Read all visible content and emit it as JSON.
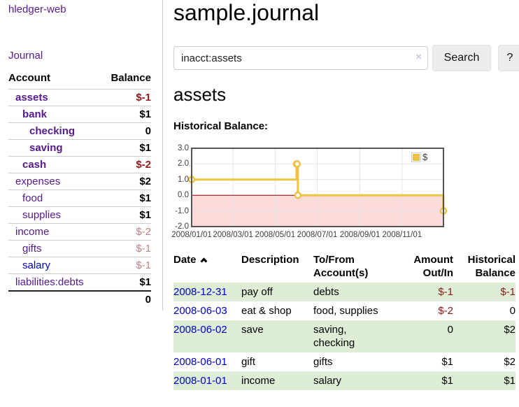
{
  "colors": {
    "purple": "#551a8b",
    "blue": "#0000cc",
    "negative": "#8b1a1a",
    "negative_dim": "#c08484",
    "row_green": "#ddedd6",
    "gold": "#edc240",
    "zero_line": "#8b0000",
    "neg_region": "#fbdada",
    "grid": "#e4e4e4",
    "chart_border": "#545454",
    "button_bg": "#ececec"
  },
  "sidebar": {
    "brand": "hledger-web",
    "journal_link": "Journal",
    "account_header": "Account",
    "balance_header": "Balance",
    "accounts": [
      {
        "label": "assets",
        "balance": "$-1",
        "depth": 0,
        "matched": true,
        "dim": false,
        "link_color": "purple"
      },
      {
        "label": "bank",
        "balance": "$1",
        "depth": 1,
        "matched": true,
        "dim": false,
        "link_color": "purple"
      },
      {
        "label": "checking",
        "balance": "0",
        "depth": 2,
        "matched": true,
        "dim": false,
        "link_color": "purple"
      },
      {
        "label": "saving",
        "balance": "$1",
        "depth": 2,
        "matched": true,
        "dim": false,
        "link_color": "purple"
      },
      {
        "label": "cash",
        "balance": "$-2",
        "depth": 1,
        "matched": true,
        "dim": false,
        "link_color": "purple"
      },
      {
        "label": "expenses",
        "balance": "$2",
        "depth": 0,
        "matched": false,
        "dim": false,
        "link_color": "purple"
      },
      {
        "label": "food",
        "balance": "$1",
        "depth": 1,
        "matched": false,
        "dim": false,
        "link_color": "purple"
      },
      {
        "label": "supplies",
        "balance": "$1",
        "depth": 1,
        "matched": false,
        "dim": false,
        "link_color": "purple"
      },
      {
        "label": "income",
        "balance": "$-2",
        "depth": 0,
        "matched": false,
        "dim": true,
        "link_color": "purple"
      },
      {
        "label": "gifts",
        "balance": "$-1",
        "depth": 1,
        "matched": false,
        "dim": true,
        "link_color": "purple"
      },
      {
        "label": "salary",
        "balance": "$-1",
        "depth": 1,
        "matched": false,
        "dim": true,
        "link_color": "blue"
      },
      {
        "label": "liabilities:debts",
        "balance": "$1",
        "depth": 0,
        "matched": false,
        "dim": false,
        "link_color": "purple"
      }
    ],
    "total": "0"
  },
  "header": {
    "title": "sample.journal"
  },
  "search": {
    "value": "inacct:assets",
    "clear_icon": "×",
    "button_label": "Search",
    "help_label": "?"
  },
  "account_page": {
    "heading": "assets",
    "chart_label": "Historical Balance:"
  },
  "chart_data": {
    "type": "line",
    "step": true,
    "title": "Historical Balance:",
    "series": [
      {
        "name": "$",
        "points": [
          [
            "2008-01-01",
            1
          ],
          [
            "2008-06-01",
            2
          ],
          [
            "2008-06-02",
            2
          ],
          [
            "2008-06-03",
            0
          ],
          [
            "2008-12-31",
            -1
          ]
        ]
      }
    ],
    "x_range": [
      "2008-01-01",
      "2008-12-31"
    ],
    "ylim": [
      -2,
      3
    ],
    "ytick_labels": [
      "3.0",
      "2.0",
      "1.0",
      "0.0",
      "-1.0",
      "-2.0"
    ],
    "xticks": [
      "2008/01/01",
      "2008/03/01",
      "2008/05/01",
      "2008/07/01",
      "2008/09/01",
      "2008/11/01"
    ],
    "legend_position": "top-right",
    "grid": true,
    "negative_region_shaded": true
  },
  "register": {
    "columns": [
      "Date",
      "Description",
      "To/From Account(s)",
      "Amount Out/In",
      "Historical Balance"
    ],
    "rows": [
      {
        "date": "2008-12-31",
        "description": "pay off",
        "accounts": "debts",
        "amount": "$-1",
        "balance": "$-1"
      },
      {
        "date": "2008-06-03",
        "description": "eat & shop",
        "accounts": "food, supplies",
        "amount": "$-2",
        "balance": "0"
      },
      {
        "date": "2008-06-02",
        "description": "save",
        "accounts": "saving, checking",
        "amount": "0",
        "balance": "$2"
      },
      {
        "date": "2008-06-01",
        "description": "gift",
        "accounts": "gifts",
        "amount": "$1",
        "balance": "$2"
      },
      {
        "date": "2008-01-01",
        "description": "income",
        "accounts": "salary",
        "amount": "$1",
        "balance": "$1"
      }
    ]
  }
}
